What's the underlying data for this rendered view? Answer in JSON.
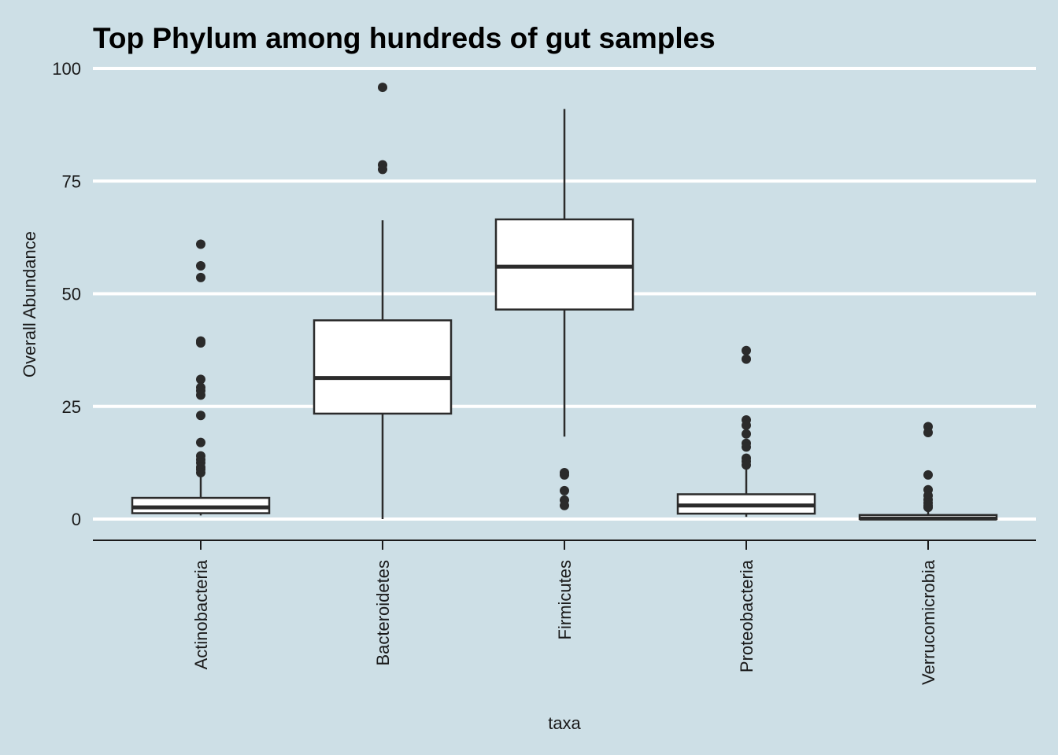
{
  "chart_data": {
    "type": "boxplot",
    "title": "Top Phylum among hundreds of gut samples",
    "xlabel": "taxa",
    "ylabel": "Overall Abundance",
    "ylim": [
      -5,
      100
    ],
    "yticks": [
      0,
      25,
      50,
      75,
      100
    ],
    "grid": "horizontal-major",
    "x_label_rotation": -90,
    "colors": {
      "background": "#cddfe6",
      "gridline": "#ffffff",
      "box_fill": "#ffffff",
      "box_stroke": "#2b2b2b",
      "axis": "#1a1a1a",
      "outlier": "#2b2b2b"
    },
    "categories": [
      "Actinobacteria",
      "Bacteroidetes",
      "Firmicutes",
      "Proteobacteria",
      "Verrucomicrobia"
    ],
    "boxes": [
      {
        "name": "Actinobacteria",
        "whisker_low": 0.8,
        "q1": 1.3,
        "median": 2.6,
        "q3": 4.7,
        "whisker_high": 9.5,
        "outliers": [
          61,
          56.2,
          53.6,
          39.5,
          39.1,
          31.0,
          29.2,
          28.5,
          27.5,
          23.0,
          17.0,
          14.0,
          13.2,
          12.5,
          11.5,
          11.0,
          10.3
        ]
      },
      {
        "name": "Bacteroidetes",
        "whisker_low": 0.0,
        "q1": 23.4,
        "median": 31.3,
        "q3": 44.1,
        "whisker_high": 66.3,
        "outliers": [
          95.8,
          78.6,
          77.6
        ]
      },
      {
        "name": "Firmicutes",
        "whisker_low": 18.3,
        "q1": 46.5,
        "median": 56.0,
        "q3": 66.5,
        "whisker_high": 91.0,
        "outliers": [
          10.3,
          9.8,
          6.3,
          4.2,
          3.0
        ]
      },
      {
        "name": "Proteobacteria",
        "whisker_low": 0.5,
        "q1": 1.2,
        "median": 3.0,
        "q3": 5.5,
        "whisker_high": 11.2,
        "outliers": [
          37.4,
          35.5,
          22.0,
          20.8,
          18.9,
          16.8,
          16.0,
          13.5,
          12.8,
          12.0
        ]
      },
      {
        "name": "Verrucomicrobia",
        "whisker_low": 0.0,
        "q1": 0.0,
        "median": 0.1,
        "q3": 0.9,
        "whisker_high": 2.2,
        "outliers": [
          20.5,
          19.2,
          9.8,
          6.5,
          5.2,
          4.3,
          3.6,
          3.0,
          2.6
        ]
      }
    ]
  }
}
